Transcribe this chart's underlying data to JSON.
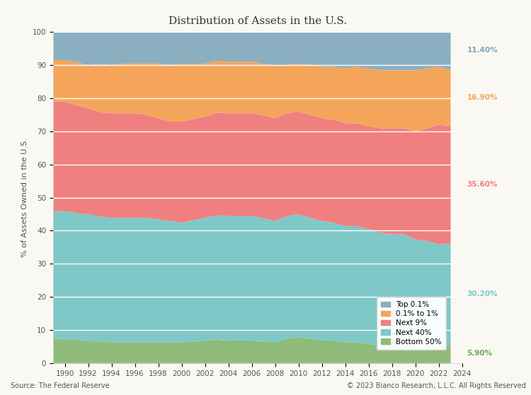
{
  "title": "Distribution of Assets in the U.S.",
  "ylabel": "% of Assets Owned in the U.S.",
  "source": "Source: The Federal Reserve",
  "copyright": "© 2023 Bianco Research, L.L.C. All Rights Reserved",
  "years": [
    1989,
    1990,
    1991,
    1992,
    1993,
    1994,
    1995,
    1996,
    1997,
    1998,
    1999,
    2000,
    2001,
    2002,
    2003,
    2004,
    2005,
    2006,
    2007,
    2008,
    2009,
    2010,
    2011,
    2012,
    2013,
    2014,
    2015,
    2016,
    2017,
    2018,
    2019,
    2020,
    2021,
    2022,
    2023
  ],
  "bottom50": [
    7.5,
    7.5,
    7.2,
    7.0,
    6.8,
    6.5,
    6.5,
    6.5,
    6.5,
    6.5,
    6.5,
    6.5,
    6.8,
    7.0,
    7.2,
    7.0,
    7.0,
    7.0,
    6.8,
    6.5,
    7.5,
    8.0,
    7.5,
    7.0,
    7.0,
    6.5,
    6.5,
    6.0,
    5.5,
    5.5,
    5.5,
    5.0,
    5.5,
    5.5,
    5.9
  ],
  "next40": [
    38.5,
    38.5,
    38.2,
    38.0,
    37.5,
    37.5,
    37.5,
    37.5,
    37.5,
    37.0,
    36.5,
    36.0,
    36.5,
    37.0,
    37.5,
    37.5,
    37.5,
    37.5,
    37.0,
    36.5,
    37.0,
    37.0,
    36.5,
    36.0,
    35.5,
    35.0,
    35.0,
    34.5,
    34.0,
    33.5,
    33.5,
    32.5,
    31.5,
    30.5,
    30.2
  ],
  "next9": [
    33.0,
    33.0,
    32.5,
    32.0,
    31.5,
    31.5,
    31.5,
    31.5,
    31.0,
    30.5,
    30.0,
    30.5,
    30.5,
    30.5,
    31.0,
    31.0,
    31.0,
    31.0,
    31.0,
    31.0,
    31.0,
    31.0,
    31.0,
    31.0,
    31.0,
    31.0,
    31.0,
    31.0,
    31.5,
    32.0,
    32.0,
    32.5,
    34.0,
    36.0,
    35.6
  ],
  "p1to01": [
    12.5,
    12.5,
    13.0,
    13.0,
    14.5,
    14.5,
    15.0,
    15.0,
    15.5,
    16.5,
    17.0,
    17.5,
    16.5,
    16.0,
    15.5,
    15.5,
    15.5,
    15.5,
    15.5,
    16.0,
    14.5,
    14.5,
    15.0,
    15.5,
    16.0,
    16.5,
    17.0,
    17.5,
    17.5,
    17.5,
    17.5,
    18.5,
    18.0,
    17.5,
    16.9
  ],
  "top01": [
    8.5,
    8.5,
    9.1,
    10.0,
    9.7,
    10.0,
    9.5,
    9.5,
    9.5,
    9.5,
    10.0,
    9.5,
    9.7,
    9.5,
    8.8,
    9.0,
    9.0,
    9.0,
    9.7,
    10.0,
    10.0,
    9.5,
    10.0,
    10.5,
    10.5,
    11.0,
    10.5,
    11.0,
    11.5,
    11.5,
    11.5,
    11.5,
    11.0,
    10.5,
    11.4
  ],
  "colors": {
    "top01": "#8aafc0",
    "p1to01": "#f5a55a",
    "next9": "#f08080",
    "next40": "#7ec8c8",
    "bottom50": "#8fbc7a"
  },
  "label_colors": {
    "top01": "#7ba7bc",
    "p1to01": "#f5a55a",
    "next9": "#f08080",
    "next40": "#7ec8c8",
    "bottom50": "#6aaa5a"
  },
  "end_labels": {
    "top01": "11.40%",
    "p1to01": "16.90%",
    "next9": "35.60%",
    "next40": "30.20%",
    "bottom50": "5.90%"
  },
  "legend_labels": [
    "Top 0.1%",
    "0.1% to 1%",
    "Next 9%",
    "Next 40%",
    "Bottom 50%"
  ],
  "xlim": [
    1989,
    2023.5
  ],
  "ylim": [
    0,
    100
  ],
  "xticks": [
    1990,
    1992,
    1994,
    1996,
    1998,
    2000,
    2002,
    2004,
    2006,
    2008,
    2010,
    2012,
    2014,
    2016,
    2018,
    2020,
    2022,
    2024
  ],
  "yticks": [
    0,
    10,
    20,
    30,
    40,
    50,
    60,
    70,
    80,
    90,
    100
  ],
  "background_color": "#faf8f3",
  "plot_bg_color": "#faf8f3"
}
